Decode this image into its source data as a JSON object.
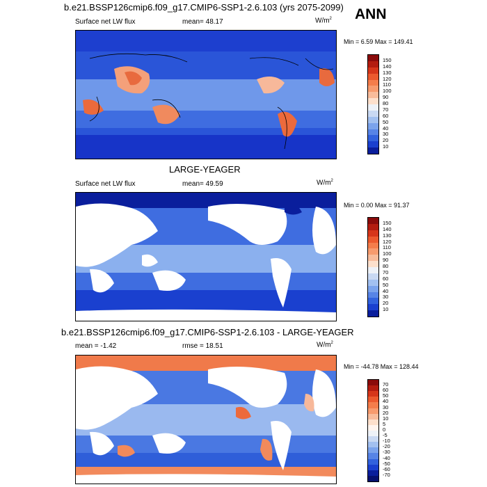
{
  "panel1": {
    "title": "b.e21.BSSP126cmip6.f09_g17.CMIP6-SSP1-2.6.103 (yrs 2075-2099)",
    "season": "ANN",
    "field": "Surface net LW flux",
    "mean_label": "mean=",
    "mean": "48.17",
    "units": "W/m",
    "units_exp": "2",
    "minmax": "Min =   6.59 Max = 149.41",
    "colorbar_labels": [
      "150",
      "140",
      "130",
      "120",
      "110",
      "100",
      "90",
      "80",
      "70",
      "60",
      "50",
      "40",
      "30",
      "20",
      "10"
    ],
    "colorbar_colors": [
      "#8a0b0b",
      "#b31c10",
      "#d6361a",
      "#ec5a2e",
      "#f47d4b",
      "#f79b6e",
      "#f8bc9b",
      "#fde0cc",
      "#eef2f8",
      "#c9d9f3",
      "#a2c0f0",
      "#7ba3ec",
      "#5784e6",
      "#3262dd",
      "#1a40cf",
      "#0a1e9c"
    ]
  },
  "panel2": {
    "title": "LARGE-YEAGER",
    "field": "Surface net LW flux",
    "mean_label": "mean=",
    "mean": "49.59",
    "units": "W/m",
    "units_exp": "2",
    "minmax": "Min =   0.00 Max =  91.37",
    "colorbar_labels": [
      "150",
      "140",
      "130",
      "120",
      "110",
      "100",
      "90",
      "80",
      "70",
      "60",
      "50",
      "40",
      "30",
      "20",
      "10"
    ],
    "colorbar_colors": [
      "#8a0b0b",
      "#b31c10",
      "#d6361a",
      "#ec5a2e",
      "#f47d4b",
      "#f79b6e",
      "#f8bc9b",
      "#fde0cc",
      "#eef2f8",
      "#c9d9f3",
      "#a2c0f0",
      "#7ba3ec",
      "#5784e6",
      "#3262dd",
      "#1a40cf",
      "#0a1e9c"
    ]
  },
  "panel3": {
    "title": "b.e21.BSSP126cmip6.f09_g17.CMIP6-SSP1-2.6.103 - LARGE-YEAGER",
    "mean_label": "mean =",
    "mean": "-1.42",
    "rmse_label": "rmse =",
    "rmse": "18.51",
    "units": "W/m",
    "units_exp": "2",
    "minmax": "Min = -44.78 Max = 128.44",
    "colorbar_labels": [
      "70",
      "60",
      "50",
      "40",
      "30",
      "20",
      "10",
      "5",
      "0",
      "-5",
      "-10",
      "-20",
      "-30",
      "-40",
      "-50",
      "-60",
      "-70"
    ],
    "colorbar_colors": [
      "#8a0b0b",
      "#b31c10",
      "#d6361a",
      "#ec5a2e",
      "#f47d4b",
      "#f79b6e",
      "#f8bc9b",
      "#fde0cc",
      "#fff5ef",
      "#eef2f8",
      "#c9d9f3",
      "#a2c0f0",
      "#7ba3ec",
      "#5784e6",
      "#3262dd",
      "#1a40cf",
      "#0a1e9c",
      "#06106e"
    ]
  }
}
